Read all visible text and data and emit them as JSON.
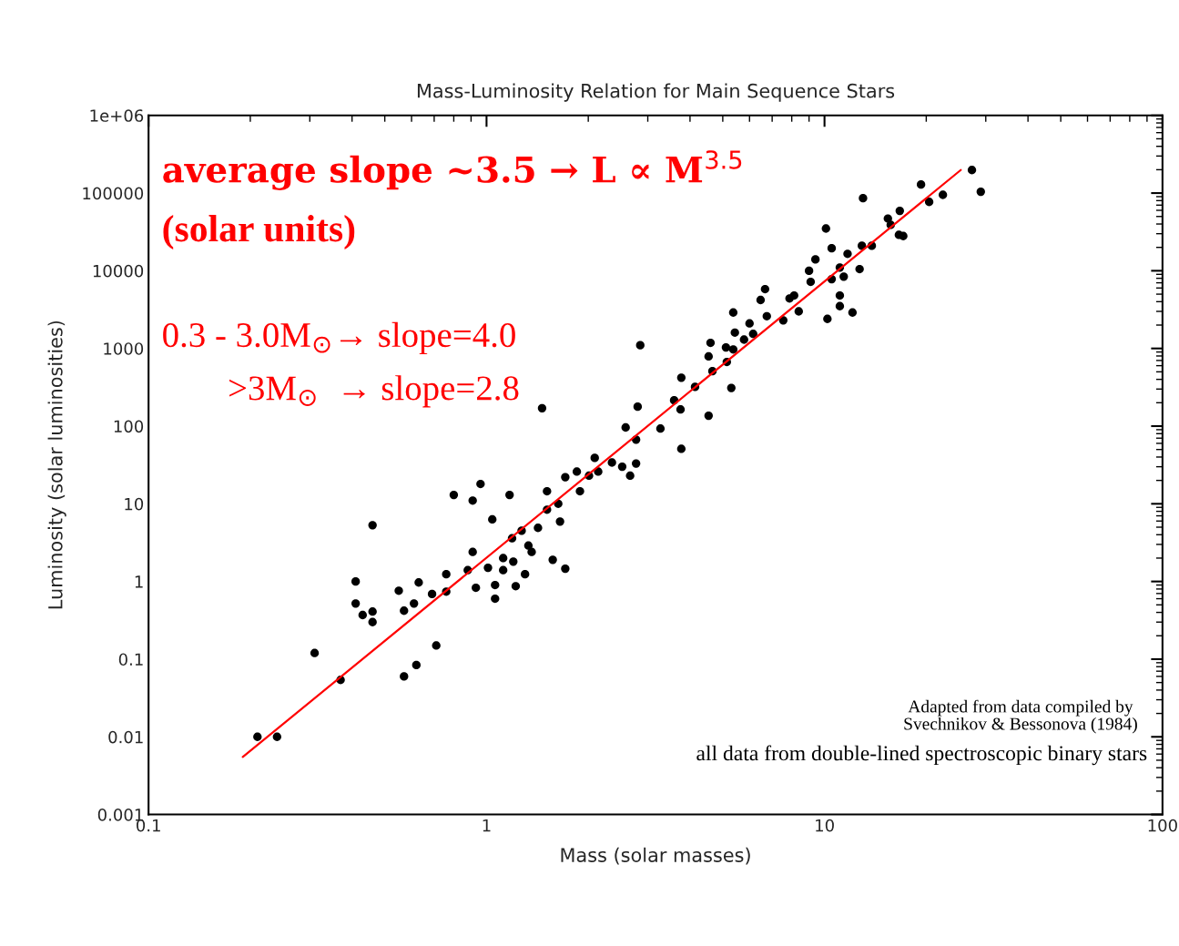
{
  "chart_data": {
    "type": "scatter",
    "title": "Mass-Luminosity Relation for Main Sequence Stars",
    "xlabel": "Mass (solar masses)",
    "ylabel": "Luminosity (solar luminosities)",
    "log": "xy",
    "xlim": [
      0.1,
      100
    ],
    "ylim": [
      0.001,
      1000000
    ],
    "xticks": [
      0.1,
      1,
      10,
      100
    ],
    "yticks": [
      0.001,
      0.01,
      0.1,
      1,
      10,
      100,
      1000,
      10000,
      100000,
      {
        "value": 1000000,
        "label": "1e+06"
      }
    ],
    "grid": false,
    "marker": "circle",
    "series": [
      {
        "color": "#000000",
        "x": [
          0.21,
          0.24,
          0.31,
          0.37,
          0.46,
          0.41,
          0.41,
          0.43,
          0.46,
          0.46,
          0.55,
          0.57,
          0.61,
          0.63,
          0.69,
          0.71,
          0.62,
          0.57,
          0.76,
          0.76,
          0.8,
          0.96,
          0.91,
          1.04,
          1.17,
          0.91,
          0.88,
          0.93,
          1.01,
          1.06,
          1.06,
          1.12,
          1.12,
          1.2,
          1.22,
          1.3,
          1.33,
          1.27,
          1.36,
          1.57,
          1.71,
          1.65,
          1.51,
          1.71,
          1.85,
          1.51,
          1.63,
          2.01,
          1.89,
          2.09,
          1.19,
          1.42,
          2.85,
          1.46,
          2.14,
          2.35,
          2.52,
          2.66,
          2.77,
          2.58,
          2.77,
          2.8,
          3.27,
          3.75,
          3.77,
          3.59,
          3.77,
          4.14,
          4.54,
          4.54,
          4.6,
          4.66,
          5.11,
          5.37,
          5.3,
          5.14,
          5.37,
          5.43,
          5.78,
          6.0,
          6.15,
          6.47,
          6.67,
          6.75,
          7.55,
          7.88,
          8.13,
          8.39,
          9.0,
          9.1,
          9.4,
          10.1,
          10.5,
          10.5,
          10.2,
          11.1,
          11.1,
          11.1,
          11.4,
          11.7,
          12.1,
          12.7,
          12.9,
          13.8,
          13.0,
          15.4,
          15.7,
          16.7,
          16.6,
          17.1,
          19.3,
          20.4,
          22.4,
          27.3,
          29
        ],
        "values": [
          0.01,
          0.01,
          0.12,
          0.054,
          5.3,
          1.0,
          0.52,
          0.37,
          0.41,
          0.3,
          0.76,
          0.42,
          0.52,
          0.97,
          0.69,
          0.15,
          0.084,
          0.06,
          1.24,
          0.74,
          13,
          18,
          11,
          6.3,
          13,
          2.4,
          1.4,
          0.83,
          1.5,
          0.9,
          0.6,
          2.0,
          1.4,
          1.8,
          0.87,
          1.24,
          2.9,
          4.5,
          2.4,
          1.9,
          1.46,
          5.9,
          14.5,
          22,
          26,
          8.4,
          10,
          23,
          14.5,
          39,
          3.6,
          4.9,
          1100,
          170,
          26,
          34,
          30,
          23,
          33,
          96,
          67,
          178,
          93,
          164,
          51,
          215,
          420,
          320,
          136,
          790,
          1180,
          510,
          1030,
          970,
          310,
          670,
          2900,
          1600,
          1300,
          2100,
          1540,
          4200,
          5800,
          2600,
          2300,
          4400,
          4800,
          3000,
          10000,
          7200,
          14000,
          35000,
          19500,
          7800,
          2400,
          4800,
          3500,
          11000,
          8400,
          16500,
          2900,
          10500,
          21000,
          21000,
          86000,
          47000,
          39000,
          59000,
          29000,
          28000,
          129000,
          77000,
          95000,
          198000,
          104000
        ]
      },
      {
        "type": "line",
        "color": "#ff0000",
        "line_style": "solid",
        "marker": "none",
        "x": [
          0.19,
          25.3
        ],
        "values": [
          0.0055,
          198000
        ]
      }
    ],
    "annotations": [
      "average slope ~3.5 → L ∝ M$^{3.5}$",
      "(solar units)",
      "0.3 - 3.0M$_{⊙}$→ slope=4.0",
      ">3M$_{⊙}$  → slope=2.8",
      "Adapted from data compiled by\nSvechnikov & Bessonova (1984)",
      "all data from double-lined spectroscopic binary stars"
    ]
  }
}
